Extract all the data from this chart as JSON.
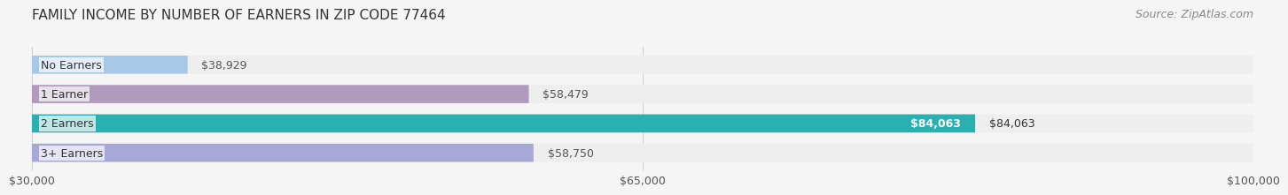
{
  "title": "FAMILY INCOME BY NUMBER OF EARNERS IN ZIP CODE 77464",
  "source": "Source: ZipAtlas.com",
  "categories": [
    "No Earners",
    "1 Earner",
    "2 Earners",
    "3+ Earners"
  ],
  "values": [
    38929,
    58479,
    84063,
    58750
  ],
  "labels": [
    "$38,929",
    "$58,479",
    "$84,063",
    "$58,750"
  ],
  "bar_colors": [
    "#a8c8e8",
    "#b09abe",
    "#2ab0b0",
    "#a8a8d8"
  ],
  "bar_bg_color": "#eeeeee",
  "label_colors": [
    "#555555",
    "#555555",
    "#ffffff",
    "#555555"
  ],
  "xlim": [
    30000,
    100000
  ],
  "xticks": [
    30000,
    65000,
    100000
  ],
  "xticklabels": [
    "$30,000",
    "$65,000",
    "$100,000"
  ],
  "title_fontsize": 11,
  "source_fontsize": 9,
  "label_fontsize": 9,
  "tick_fontsize": 9,
  "category_fontsize": 9,
  "background_color": "#f5f5f5"
}
